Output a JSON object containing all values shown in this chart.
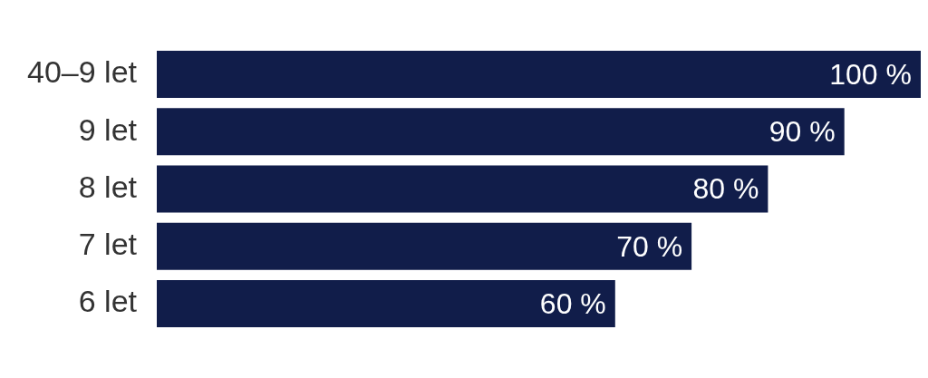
{
  "chart_data": {
    "type": "bar",
    "orientation": "horizontal",
    "categories": [
      "40–9 let",
      "9 let",
      "8 let",
      "7 let",
      "6 let"
    ],
    "values": [
      100,
      90,
      80,
      70,
      60
    ],
    "color": "#111d4a",
    "value_labels": [
      "100 %",
      "90 %",
      "80 %",
      "70 %",
      "60 %"
    ],
    "xlim": [
      0,
      100
    ],
    "tick_labels": "y",
    "grid": false,
    "legend": false
  }
}
